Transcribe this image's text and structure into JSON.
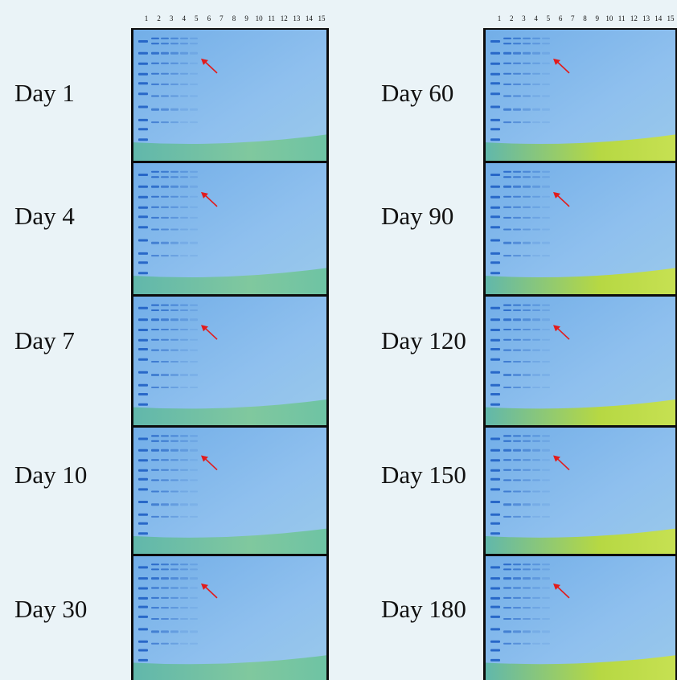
{
  "lane_numbers": [
    "1",
    "2",
    "3",
    "4",
    "5",
    "6",
    "7",
    "8",
    "9",
    "10",
    "11",
    "12",
    "13",
    "14",
    "15"
  ],
  "left_panels": [
    {
      "label": "Day 1"
    },
    {
      "label": "Day 4"
    },
    {
      "label": "Day 7"
    },
    {
      "label": "Day 10"
    },
    {
      "label": "Day 30"
    }
  ],
  "right_panels": [
    {
      "label": "Day 60"
    },
    {
      "label": "Day 90"
    },
    {
      "label": "Day 120"
    },
    {
      "label": "Day 150"
    },
    {
      "label": "Day 180"
    }
  ],
  "colors": {
    "gel_blue": "#6ea8e6",
    "gel_light": "#8fc0ee",
    "band_dark": "#1f5fc4",
    "dye_front": "#7fc89a",
    "dye_front_yellow": "#b8d93a",
    "arrow": "#e21b1b",
    "frame": "#0c0c0c"
  }
}
